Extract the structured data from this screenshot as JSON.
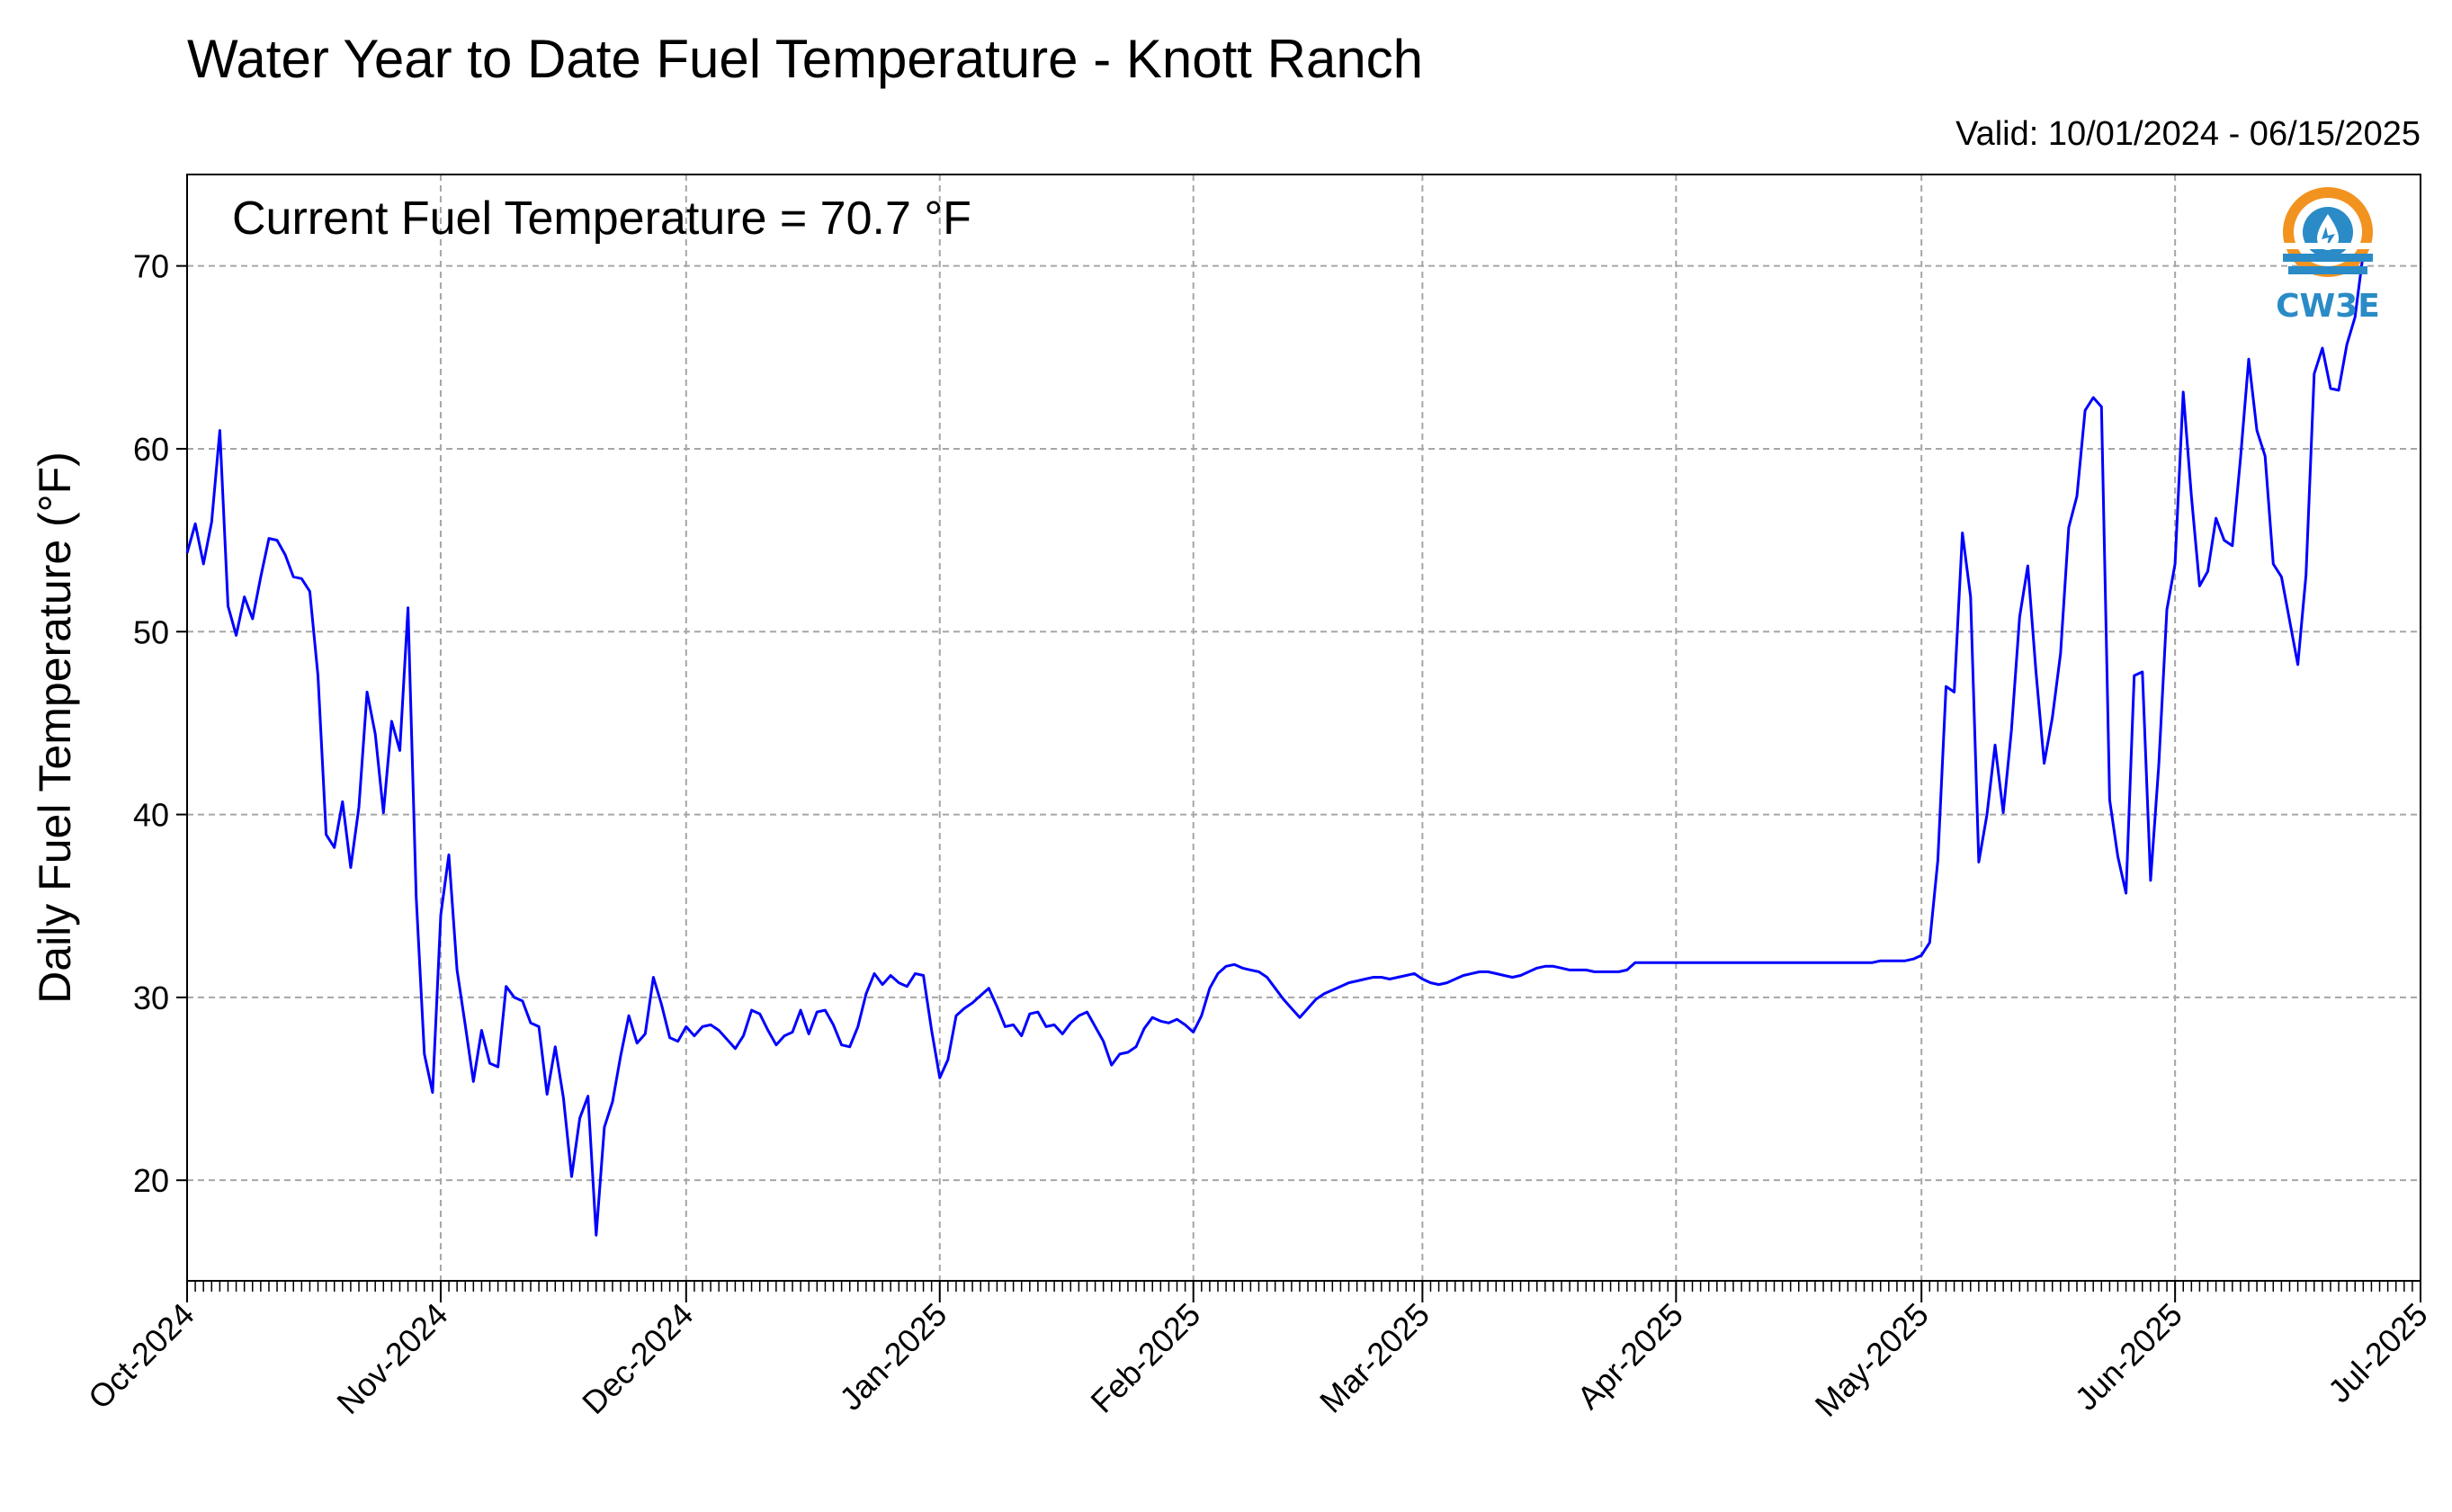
{
  "chart_data": {
    "type": "line",
    "title": "Water Year to Date Fuel Temperature - Knott Ranch",
    "subtitle": "Valid: 10/01/2024 - 06/15/2025",
    "annotation": "Current Fuel Temperature = 70.7 °F",
    "xlabel": "",
    "ylabel": "Daily Fuel Temperature (°F)",
    "ylim": [
      14.5,
      75
    ],
    "yticks": [
      20,
      30,
      40,
      50,
      60,
      70
    ],
    "xlim": [
      "2024-10-01",
      "2025-07-01"
    ],
    "xtick_labels": [
      "Oct-2024",
      "Nov-2024",
      "Dec-2024",
      "Jan-2025",
      "Feb-2025",
      "Mar-2025",
      "Apr-2025",
      "May-2025",
      "Jun-2025",
      "Jul-2025"
    ],
    "xtick_dates": [
      "2024-10-01",
      "2024-11-01",
      "2024-12-01",
      "2025-01-01",
      "2025-02-01",
      "2025-03-01",
      "2025-04-01",
      "2025-05-01",
      "2025-06-01",
      "2025-07-01"
    ],
    "grid": true,
    "line_color": "#0000ff",
    "series": [
      {
        "start_date": "2024-10-01",
        "values": [
          54.3,
          55.9,
          53.7,
          56.0,
          61.0,
          51.4,
          49.8,
          51.9,
          50.7,
          53.0,
          55.1,
          55.0,
          54.2,
          53.0,
          52.9,
          52.2,
          47.6,
          38.9,
          38.2,
          40.7,
          37.1,
          40.4,
          46.7,
          44.4,
          40.1,
          45.1,
          43.5,
          51.3,
          35.5,
          26.9,
          24.8,
          34.5,
          37.8,
          31.5,
          28.5,
          25.4,
          28.2,
          26.4,
          26.2,
          30.6,
          30.0,
          29.8,
          28.6,
          28.4,
          24.7,
          27.3,
          24.5,
          20.2,
          23.4,
          24.6,
          17.0,
          22.9,
          24.3,
          26.8,
          29.0,
          27.5,
          28.0,
          31.1,
          29.6,
          27.8,
          27.6,
          28.4,
          27.9,
          28.4,
          28.5,
          28.2,
          27.7,
          27.2,
          27.9,
          29.3,
          29.1,
          28.2,
          27.4,
          27.9,
          28.1,
          29.3,
          28.0,
          29.2,
          29.3,
          28.5,
          27.4,
          27.3,
          28.4,
          30.2,
          31.3,
          30.7,
          31.2,
          30.8,
          30.6,
          31.3,
          31.2,
          28.2,
          25.6,
          26.6,
          29.0,
          29.4,
          29.7,
          30.1,
          30.5,
          29.5,
          28.4,
          28.5,
          27.9,
          29.1,
          29.2,
          28.4,
          28.5,
          28.0,
          28.6,
          29.0,
          29.2,
          28.4,
          27.6,
          26.3,
          26.9,
          27.0,
          27.3,
          28.3,
          28.9,
          28.7,
          28.6,
          28.8,
          28.5,
          28.1,
          29.0,
          30.5,
          31.3,
          31.7,
          31.8,
          31.6,
          31.5,
          31.4,
          31.1,
          30.5,
          29.9,
          29.4,
          28.9,
          29.4,
          29.9,
          30.2,
          30.4,
          30.6,
          30.8,
          30.9,
          31.0,
          31.1,
          31.1,
          31.0,
          31.1,
          31.2,
          31.3,
          31.0,
          30.8,
          30.7,
          30.8,
          31.0,
          31.2,
          31.3,
          31.4,
          31.4,
          31.3,
          31.2,
          31.1,
          31.2,
          31.4,
          31.6,
          31.7,
          31.7,
          31.6,
          31.5,
          31.5,
          31.5,
          31.4,
          31.4,
          31.4,
          31.4,
          31.5,
          31.9,
          31.9,
          31.9,
          31.9,
          31.9,
          31.9,
          31.9,
          31.9,
          31.9,
          31.9,
          31.9,
          31.9,
          31.9,
          31.9,
          31.9,
          31.9,
          31.9,
          31.9,
          31.9,
          31.9,
          31.9,
          31.9,
          31.9,
          31.9,
          31.9,
          31.9,
          31.9,
          31.9,
          31.9,
          31.9,
          32.0,
          32.0,
          32.0,
          32.0,
          32.1,
          32.3,
          33.0,
          37.5,
          47.0,
          46.7,
          55.4,
          51.9,
          37.4,
          40.0,
          43.8,
          40.1,
          44.6,
          50.8,
          53.6,
          47.8,
          42.8,
          45.3,
          48.8,
          55.7,
          57.4,
          62.1,
          62.8,
          62.3,
          40.8,
          37.7,
          35.7,
          47.6,
          47.8,
          36.4,
          42.7,
          51.2,
          53.7,
          63.1,
          57.4,
          52.5,
          53.3,
          56.2,
          55.0,
          54.7,
          59.5,
          64.9,
          61.0,
          59.6,
          53.7,
          53.0,
          50.6,
          48.2,
          53.1,
          64.1,
          65.5,
          63.3,
          63.2,
          65.7,
          67.2,
          70.7
        ]
      }
    ]
  },
  "logo": {
    "text": "CW3E",
    "icon": "cw3e-droplet-logo",
    "ring_color": "#f29320",
    "blue_color": "#2a8bc6"
  }
}
